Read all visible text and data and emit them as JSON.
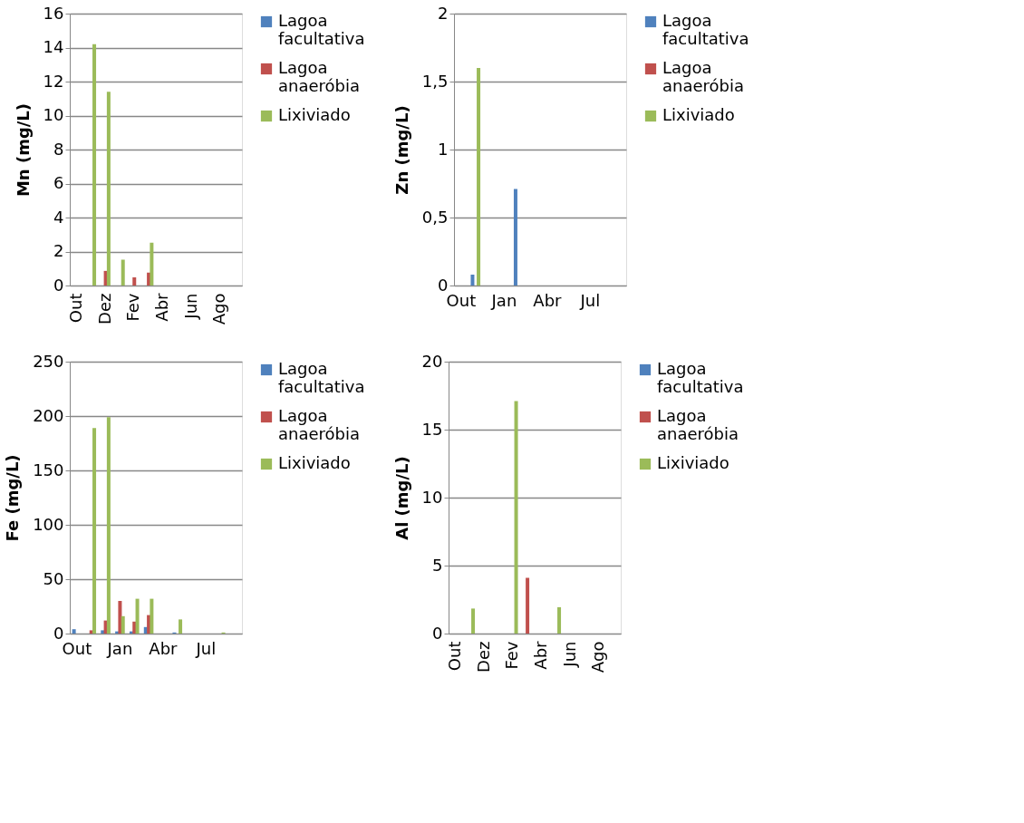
{
  "chart_data": [
    {
      "type": "bar",
      "ylabel": "Mn (mg/L)",
      "categories": [
        "Out",
        null,
        "Dez",
        null,
        "Fev",
        null,
        "Abr",
        null,
        "Jun",
        null,
        "Ago",
        null
      ],
      "ylim": [
        0,
        16
      ],
      "yticks": [
        0,
        2,
        4,
        6,
        8,
        10,
        12,
        14,
        16
      ],
      "grid": "y",
      "legend": "right",
      "series": [
        {
          "name": "Lagoa facultativa",
          "color": "#4f81bd",
          "values": [
            null,
            null,
            null,
            null,
            null,
            null,
            null,
            null,
            null,
            null,
            null,
            null
          ]
        },
        {
          "name": "Lagoa anaeróbia",
          "color": "#c0504d",
          "values": [
            null,
            null,
            0.86,
            null,
            0.48,
            0.76,
            null,
            null,
            null,
            null,
            null,
            null
          ]
        },
        {
          "name": "Lixiviado",
          "color": "#9bbb59",
          "values": [
            null,
            14.2,
            11.4,
            1.52,
            null,
            2.52,
            null,
            null,
            null,
            null,
            null,
            null
          ]
        }
      ]
    },
    {
      "type": "bar",
      "ylabel": "Zn (mg/L)",
      "categories": [
        "Out",
        null,
        null,
        "Jan",
        null,
        null,
        "Abr",
        null,
        null,
        "Jul",
        null,
        null
      ],
      "ylim": [
        0,
        2
      ],
      "yticks": [
        0,
        {
          "value": 0.5,
          "label": "0,5"
        },
        1,
        {
          "value": 1.5,
          "label": "1,5"
        },
        2
      ],
      "grid": "y",
      "legend": "right",
      "series": [
        {
          "name": "Lagoa facultativa",
          "color": "#4f81bd",
          "values": [
            null,
            0.08,
            null,
            null,
            0.71,
            null,
            null,
            null,
            null,
            null,
            null,
            null
          ]
        },
        {
          "name": "Lagoa anaeróbia",
          "color": "#c0504d",
          "values": [
            null,
            null,
            null,
            null,
            null,
            null,
            null,
            null,
            null,
            null,
            null,
            null
          ]
        },
        {
          "name": "Lixiviado",
          "color": "#9bbb59",
          "values": [
            null,
            1.6,
            null,
            null,
            null,
            null,
            null,
            null,
            null,
            null,
            null,
            null
          ]
        }
      ]
    },
    {
      "type": "bar",
      "ylabel": "Fe (mg/L)",
      "categories": [
        "Out",
        null,
        null,
        "Jan",
        null,
        null,
        "Abr",
        null,
        null,
        "Jul",
        null,
        null
      ],
      "ylim": [
        0,
        250
      ],
      "yticks": [
        0,
        50,
        100,
        150,
        200,
        250
      ],
      "grid": "y",
      "legend": "right",
      "series": [
        {
          "name": "Lagoa facultativa",
          "color": "#4f81bd",
          "values": [
            4,
            null,
            3,
            2,
            2,
            6,
            null,
            1,
            null,
            null,
            null,
            null
          ]
        },
        {
          "name": "Lagoa anaeróbia",
          "color": "#c0504d",
          "values": [
            null,
            3,
            12,
            30,
            11,
            17,
            null,
            null,
            null,
            null,
            null,
            null
          ]
        },
        {
          "name": "Lixiviado",
          "color": "#9bbb59",
          "values": [
            null,
            189,
            199,
            16,
            32,
            32,
            null,
            13,
            null,
            null,
            1,
            null
          ]
        }
      ]
    },
    {
      "type": "bar",
      "ylabel": "Al (mg/L)",
      "categories": [
        "Out",
        null,
        "Dez",
        null,
        "Fev",
        null,
        "Abr",
        null,
        "Jun",
        null,
        "Ago",
        null
      ],
      "ylim": [
        0,
        20
      ],
      "yticks": [
        0,
        5,
        10,
        15,
        20
      ],
      "grid": "y",
      "legend": "right",
      "series": [
        {
          "name": "Lagoa facultativa",
          "color": "#4f81bd",
          "values": [
            null,
            null,
            null,
            null,
            null,
            null,
            null,
            null,
            null,
            null,
            null,
            null
          ]
        },
        {
          "name": "Lagoa anaeróbia",
          "color": "#c0504d",
          "values": [
            null,
            null,
            null,
            null,
            null,
            4.1,
            null,
            null,
            null,
            null,
            null,
            null
          ]
        },
        {
          "name": "Lixiviado",
          "color": "#9bbb59",
          "values": [
            null,
            1.84,
            null,
            null,
            17.1,
            null,
            null,
            1.94,
            null,
            null,
            null,
            null
          ]
        }
      ]
    }
  ]
}
